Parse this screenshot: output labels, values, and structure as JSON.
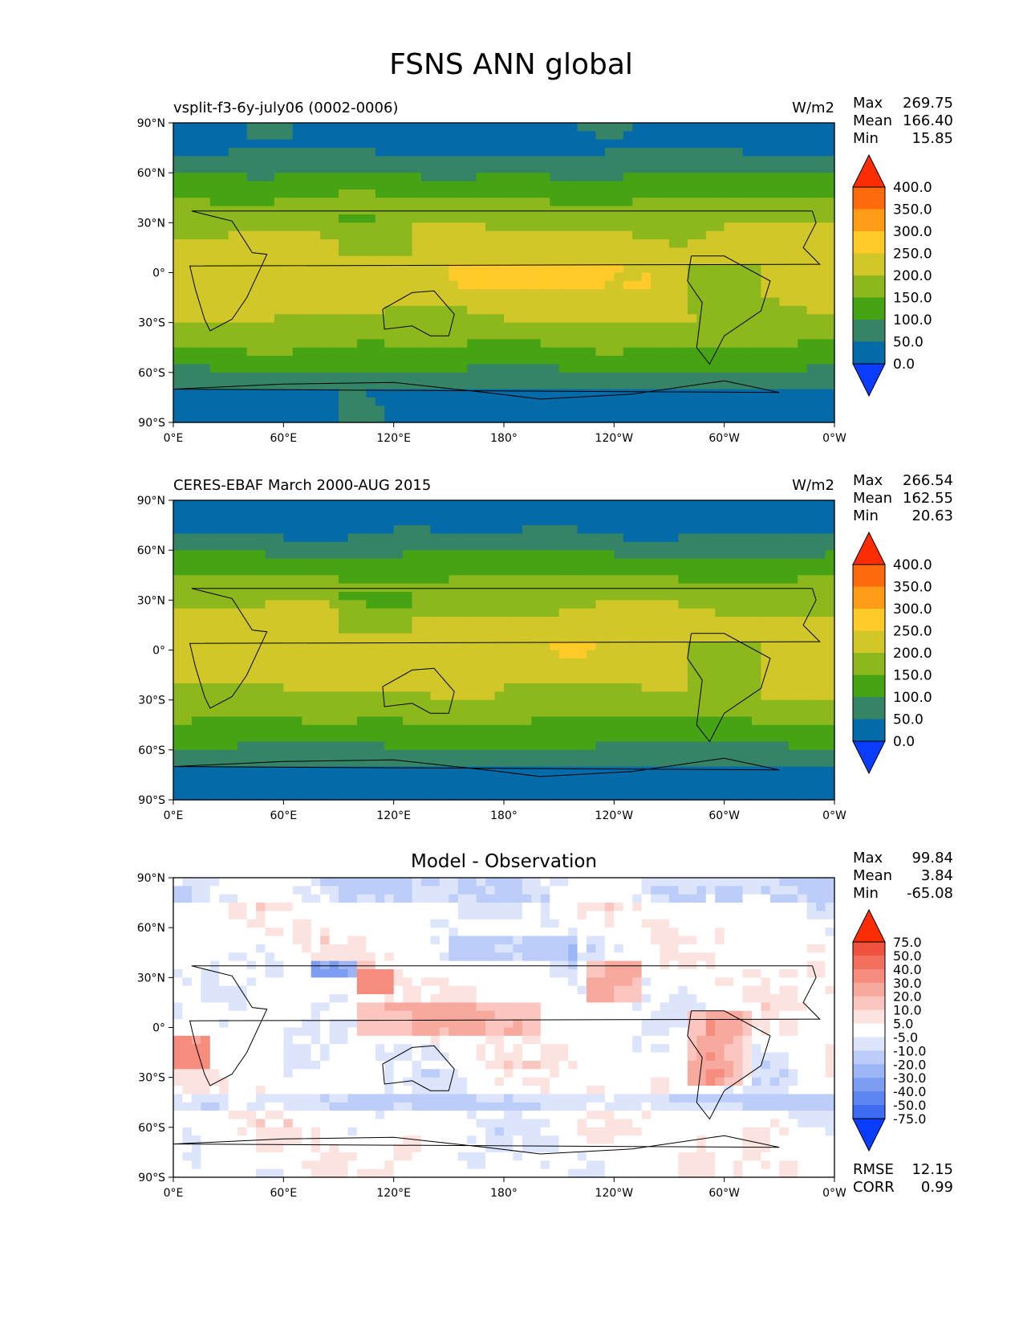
{
  "suptitle": "FSNS ANN global",
  "chart_data": [
    {
      "type": "heatmap",
      "panel": "test",
      "title_left": "vsplit-f3-6y-july06 (0002-0006)",
      "title_right": "W/m2",
      "x_tick_labels": [
        "0°E",
        "60°E",
        "120°E",
        "180°",
        "120°W",
        "60°W",
        "0°W"
      ],
      "y_tick_labels": [
        "90°N",
        "60°N",
        "30°N",
        "0°",
        "30°S",
        "60°S",
        "90°S"
      ],
      "xlim": [
        0,
        360
      ],
      "ylim": [
        -90,
        90
      ],
      "stats": [
        {
          "label": "Max",
          "value": "269.75"
        },
        {
          "label": "Mean",
          "value": "166.40"
        },
        {
          "label": "Min",
          "value": "15.85"
        }
      ],
      "colorbar": {
        "levels": [
          "0.0",
          "50.0",
          "100.0",
          "150.0",
          "200.0",
          "250.0",
          "300.0",
          "350.0",
          "400.0"
        ],
        "colors": [
          "#0a3cff",
          "#046aa8",
          "#358466",
          "#46a314",
          "#8db81d",
          "#d1c728",
          "#feca27",
          "#fe9b17",
          "#fe6a0c",
          "#fe2c03"
        ],
        "extend": "both"
      }
    },
    {
      "type": "heatmap",
      "panel": "reference",
      "title_left": "CERES-EBAF March 2000-AUG 2015",
      "title_right": "W/m2",
      "x_tick_labels": [
        "0°E",
        "60°E",
        "120°E",
        "180°",
        "120°W",
        "60°W",
        "0°W"
      ],
      "y_tick_labels": [
        "90°N",
        "60°N",
        "30°N",
        "0°",
        "30°S",
        "60°S",
        "90°S"
      ],
      "xlim": [
        0,
        360
      ],
      "ylim": [
        -90,
        90
      ],
      "stats": [
        {
          "label": "Max",
          "value": "266.54"
        },
        {
          "label": "Mean",
          "value": "162.55"
        },
        {
          "label": "Min",
          "value": "20.63"
        }
      ],
      "colorbar": {
        "levels": [
          "0.0",
          "50.0",
          "100.0",
          "150.0",
          "200.0",
          "250.0",
          "300.0",
          "350.0",
          "400.0"
        ],
        "colors": [
          "#0a3cff",
          "#046aa8",
          "#358466",
          "#46a314",
          "#8db81d",
          "#d1c728",
          "#feca27",
          "#fe9b17",
          "#fe6a0c",
          "#fe2c03"
        ],
        "extend": "both"
      }
    },
    {
      "type": "heatmap",
      "panel": "difference",
      "title_center": "Model - Observation",
      "x_tick_labels": [
        "0°E",
        "60°E",
        "120°E",
        "180°",
        "120°W",
        "60°W",
        "0°W"
      ],
      "y_tick_labels": [
        "90°N",
        "60°N",
        "30°N",
        "0°",
        "30°S",
        "60°S",
        "90°S"
      ],
      "xlim": [
        0,
        360
      ],
      "ylim": [
        -90,
        90
      ],
      "stats": [
        {
          "label": "Max",
          "value": "99.84"
        },
        {
          "label": "Mean",
          "value": "3.84"
        },
        {
          "label": "Min",
          "value": "-65.08"
        }
      ],
      "metrics": [
        {
          "label": "RMSE",
          "value": "12.15"
        },
        {
          "label": "CORR",
          "value": "0.99"
        }
      ],
      "colorbar": {
        "levels": [
          "-75.0",
          "-50.0",
          "-40.0",
          "-30.0",
          "-20.0",
          "-10.0",
          "-5.0",
          "5.0",
          "10.0",
          "20.0",
          "30.0",
          "40.0",
          "50.0",
          "75.0"
        ],
        "colors": [
          "#0a3cff",
          "#3d6cf2",
          "#5d85f0",
          "#7c9df2",
          "#9cb5f5",
          "#bccdf9",
          "#dce5fc",
          "#ffffff",
          "#fde3e0",
          "#fbc6bf",
          "#f8a99e",
          "#f58c7e",
          "#f26f5e",
          "#ef523d",
          "#fe2c03"
        ],
        "extend": "both"
      }
    }
  ]
}
